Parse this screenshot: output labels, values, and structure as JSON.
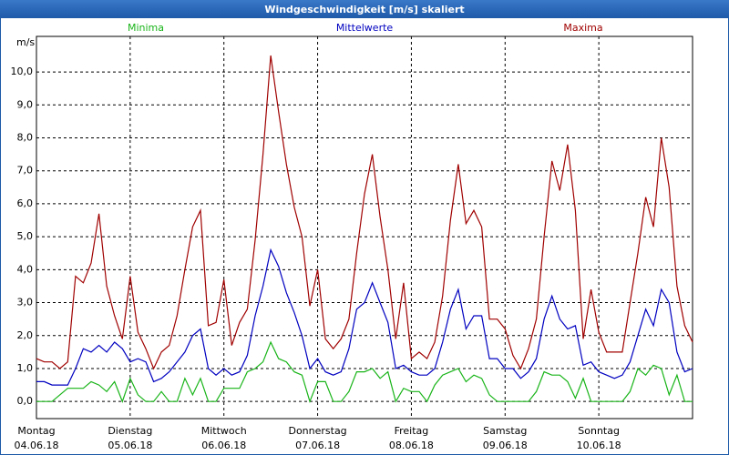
{
  "window": {
    "title": "Windgeschwindigkeit [m/s] skaliert"
  },
  "chart_data": {
    "type": "line",
    "y_unit": "m/s",
    "x": [
      0,
      2,
      4,
      6,
      8,
      10,
      12,
      14,
      16,
      18,
      20,
      22,
      24,
      26,
      28,
      30,
      32,
      34,
      36,
      38,
      40,
      42,
      44,
      46,
      48,
      50,
      52,
      54,
      56,
      58,
      60,
      62,
      64,
      66,
      68,
      70,
      72,
      74,
      76,
      78,
      80,
      82,
      84,
      86,
      88,
      90,
      92,
      94,
      96,
      98,
      100,
      102,
      104,
      106,
      108,
      110,
      112,
      114,
      116,
      118,
      120,
      122,
      124,
      126,
      128,
      130,
      132,
      134,
      136,
      138,
      140,
      142,
      144,
      146,
      148,
      150,
      152,
      154,
      156,
      158,
      160,
      162,
      164,
      166,
      168
    ],
    "series": [
      {
        "name": "Minima",
        "color": "#18b418",
        "values": [
          0,
          0,
          0,
          0.2,
          0.4,
          0.4,
          0.4,
          0.6,
          0.5,
          0.3,
          0.6,
          0,
          0.7,
          0.2,
          0,
          0,
          0.3,
          0,
          0,
          0.7,
          0.2,
          0.7,
          0,
          0,
          0.4,
          0.4,
          0.4,
          0.9,
          1.0,
          1.2,
          1.8,
          1.3,
          1.2,
          0.9,
          0.8,
          0,
          0.6,
          0.6,
          0,
          0,
          0.3,
          0.9,
          0.9,
          1.0,
          0.7,
          0.9,
          0,
          0.4,
          0.3,
          0.3,
          0,
          0.5,
          0.8,
          0.9,
          1.0,
          0.6,
          0.8,
          0.7,
          0.2,
          0,
          0,
          0,
          0,
          0,
          0.3,
          0.9,
          0.8,
          0.8,
          0.6,
          0.1,
          0.7,
          0,
          0,
          0,
          0,
          0,
          0.3,
          1.0,
          0.8,
          1.1,
          1.0,
          0.2,
          0.8,
          0,
          0
        ]
      },
      {
        "name": "Mittelwerte",
        "color": "#0000c0",
        "values": [
          0.6,
          0.6,
          0.5,
          0.5,
          0.5,
          1.0,
          1.6,
          1.5,
          1.7,
          1.5,
          1.8,
          1.6,
          1.2,
          1.3,
          1.2,
          0.6,
          0.7,
          0.9,
          1.2,
          1.5,
          2.0,
          2.2,
          1.0,
          0.8,
          1.0,
          0.8,
          0.9,
          1.4,
          2.6,
          3.5,
          4.6,
          4.1,
          3.3,
          2.7,
          2.0,
          1.0,
          1.3,
          0.9,
          0.8,
          0.9,
          1.6,
          2.8,
          3.0,
          3.6,
          3.0,
          2.4,
          1.0,
          1.1,
          0.9,
          0.8,
          0.8,
          1.0,
          1.8,
          2.8,
          3.4,
          2.2,
          2.6,
          2.6,
          1.3,
          1.3,
          1.0,
          1.0,
          0.7,
          0.9,
          1.3,
          2.5,
          3.2,
          2.5,
          2.2,
          2.3,
          1.1,
          1.2,
          0.9,
          0.8,
          0.7,
          0.8,
          1.2,
          2.0,
          2.8,
          2.3,
          3.4,
          3.0,
          1.5,
          0.9,
          1.0
        ]
      },
      {
        "name": "Maxima",
        "color": "#a00000",
        "values": [
          1.3,
          1.2,
          1.2,
          1.0,
          1.2,
          3.8,
          3.6,
          4.2,
          5.7,
          3.5,
          2.6,
          1.9,
          3.8,
          2.1,
          1.6,
          1.0,
          1.5,
          1.7,
          2.6,
          4.0,
          5.3,
          5.8,
          2.3,
          2.4,
          3.7,
          1.7,
          2.4,
          2.8,
          4.9,
          7.5,
          10.5,
          8.8,
          7.2,
          5.9,
          5.0,
          2.9,
          4.0,
          1.9,
          1.6,
          1.9,
          2.5,
          4.5,
          6.3,
          7.5,
          5.6,
          4.0,
          1.9,
          3.6,
          1.3,
          1.5,
          1.3,
          1.8,
          3.2,
          5.5,
          7.2,
          5.4,
          5.8,
          5.3,
          2.5,
          2.5,
          2.2,
          1.4,
          1.0,
          1.6,
          2.5,
          5.0,
          7.3,
          6.4,
          7.8,
          5.8,
          1.9,
          3.4,
          2.1,
          1.5,
          1.5,
          1.5,
          3.0,
          4.5,
          6.2,
          5.3,
          8.0,
          6.5,
          3.5,
          2.3,
          1.8
        ]
      }
    ],
    "xlim": [
      0,
      168
    ],
    "xticks": [
      {
        "value": 0,
        "label": [
          "Montag",
          "04.06.18"
        ]
      },
      {
        "value": 24,
        "label": [
          "Dienstag",
          "05.06.18"
        ]
      },
      {
        "value": 48,
        "label": [
          "Mittwoch",
          "06.06.18"
        ]
      },
      {
        "value": 72,
        "label": [
          "Donnerstag",
          "07.06.18"
        ]
      },
      {
        "value": 96,
        "label": [
          "Freitag",
          "08.06.18"
        ]
      },
      {
        "value": 120,
        "label": [
          "Samstag",
          "09.06.18"
        ]
      },
      {
        "value": 144,
        "label": [
          "Sonntag",
          "10.06.18"
        ]
      }
    ],
    "ylim": [
      -0.52,
      11.08
    ],
    "yticks": [
      {
        "value": 0,
        "label": "0,0"
      },
      {
        "value": 1,
        "label": "1,0"
      },
      {
        "value": 2,
        "label": "2,0"
      },
      {
        "value": 3,
        "label": "3,0"
      },
      {
        "value": 4,
        "label": "4,0"
      },
      {
        "value": 5,
        "label": "5,0"
      },
      {
        "value": 6,
        "label": "6,0"
      },
      {
        "value": 7,
        "label": "7,0"
      },
      {
        "value": 8,
        "label": "8,0"
      },
      {
        "value": 9,
        "label": "9,0"
      },
      {
        "value": 10,
        "label": "10,0"
      }
    ],
    "grid": true
  }
}
